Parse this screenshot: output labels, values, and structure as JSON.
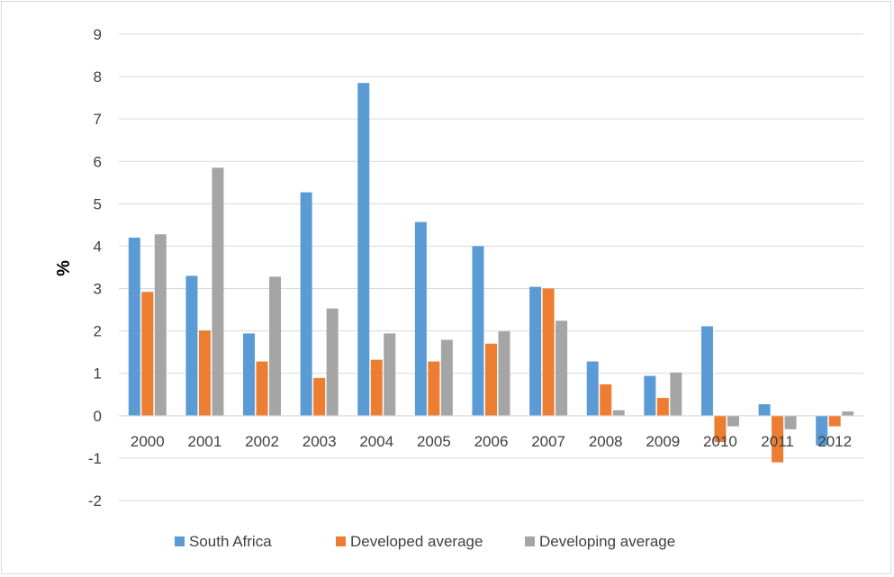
{
  "chart_data": {
    "type": "bar",
    "title": "",
    "xlabel": "",
    "ylabel": "%",
    "ylim": [
      -2,
      9
    ],
    "yticks": [
      -2,
      -1,
      0,
      1,
      2,
      3,
      4,
      5,
      6,
      7,
      8,
      9
    ],
    "grid": true,
    "legend_position": "bottom",
    "categories": [
      "2000",
      "2001",
      "2002",
      "2003",
      "2004",
      "2005",
      "2006",
      "2007",
      "2008",
      "2009",
      "2010",
      "2011",
      "2012"
    ],
    "series": [
      {
        "name": "South Africa",
        "color": "#5b9bd5",
        "values": [
          4.2,
          3.3,
          1.94,
          5.27,
          7.85,
          4.57,
          4.0,
          3.04,
          1.28,
          0.94,
          2.11,
          0.27,
          -0.7
        ]
      },
      {
        "name": "Developed average",
        "color": "#ed7d31",
        "values": [
          2.92,
          2.01,
          1.28,
          0.89,
          1.32,
          1.28,
          1.7,
          3.0,
          0.74,
          0.42,
          -0.62,
          -1.1,
          -0.25
        ]
      },
      {
        "name": "Developing average",
        "color": "#a5a5a5",
        "values": [
          4.28,
          5.85,
          3.28,
          2.53,
          1.94,
          1.79,
          1.99,
          2.24,
          0.13,
          1.02,
          -0.25,
          -0.32,
          0.1
        ]
      }
    ]
  }
}
